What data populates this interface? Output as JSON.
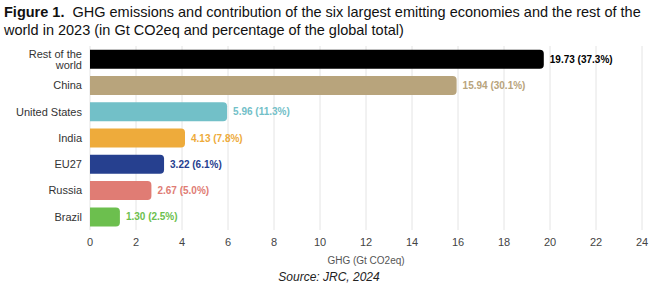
{
  "chart_data": {
    "type": "bar",
    "title": "Figure 1.  GHG emissions and contribution of the six largest emitting economies and the rest of the world in 2023 (in Gt CO2eq and percentage of the global total)",
    "source": "Source: JRC, 2024",
    "xlabel": "GHG (Gt CO2eq)",
    "orientation": "horizontal",
    "categories": [
      "Rest of the world",
      "China",
      "United States",
      "India",
      "EU27",
      "Russia",
      "Brazil"
    ],
    "values": [
      19.73,
      15.94,
      5.96,
      4.13,
      3.22,
      2.67,
      1.3
    ],
    "value_labels": [
      "19.73 (37.3%)",
      "15.94 (30.1%)",
      "5.96 (11.3%)",
      "4.13 (7.8%)",
      "3.22 (6.1%)",
      "2.67 (5.0%)",
      "1.30 (2.5%)"
    ],
    "colors": [
      "#000000",
      "#b8a47c",
      "#72c0c8",
      "#eeab3b",
      "#26408f",
      "#e07c74",
      "#6cbf4e"
    ],
    "xlim": [
      0,
      24
    ],
    "xticks": [
      0,
      2,
      4,
      6,
      8,
      10,
      12,
      14,
      16,
      18,
      20,
      22,
      24
    ],
    "grid": true,
    "data_labels": true
  }
}
